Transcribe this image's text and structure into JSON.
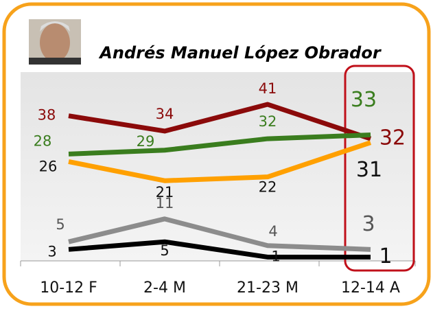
{
  "chart_data": {
    "type": "line",
    "title": "Andrés Manuel López Obrador",
    "categories": [
      "10-12 F",
      "2-4 M",
      "21-23 M",
      "12-14 A"
    ],
    "ylim": [
      0,
      50
    ],
    "series": [
      {
        "color": "#8b0a0a",
        "label_color": "#8b0a0a",
        "values": [
          38,
          34,
          41,
          32
        ]
      },
      {
        "color": "#3a7d1e",
        "label_color": "#3a7d1e",
        "values": [
          28,
          29,
          32,
          33
        ]
      },
      {
        "color": "#ffa000",
        "label_color": "#111111",
        "values": [
          26,
          21,
          22,
          31
        ]
      },
      {
        "color": "#8c8c8c",
        "label_color": "#555555",
        "values": [
          5,
          11,
          4,
          3
        ]
      },
      {
        "color": "#000000",
        "label_color": "#111111",
        "values": [
          3,
          5,
          1,
          1
        ]
      }
    ]
  }
}
